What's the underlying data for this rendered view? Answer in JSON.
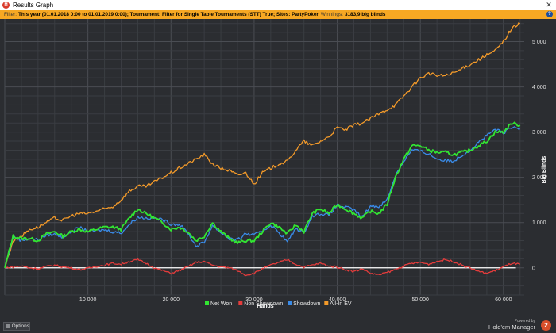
{
  "window": {
    "title": "Results Graph",
    "close_glyph": "✕",
    "app_icon": "holdem-manager-icon"
  },
  "filter": {
    "label": "Filter:",
    "description": "This year (01.01.2018 0:00 to 01.01.2019 0:00); Tournament: Filter for Single Table Tournaments (STT) True; Sites: PartyPoker",
    "winnings_label": "Winnings:",
    "winnings_value": "3183,9 big blinds",
    "help_glyph": "?"
  },
  "footer": {
    "options_label": "Options",
    "powered_by": "Powered by",
    "product_name": "Hold'em Manager",
    "badge": "2"
  },
  "chart_data": {
    "type": "line",
    "xlabel": "Hands",
    "ylabel": "Big Blinds",
    "xlim": [
      0,
      62500
    ],
    "ylim": [
      -600,
      5500
    ],
    "x_ticks": [
      10000,
      20000,
      30000,
      40000,
      50000,
      60000
    ],
    "x_tick_labels": [
      "10 000",
      "20 000",
      "30 000",
      "40 000",
      "50 000",
      "60 000"
    ],
    "y_ticks": [
      0,
      1000,
      2000,
      3000,
      4000,
      5000
    ],
    "y_tick_labels": [
      "0",
      "1 000",
      "2 000",
      "3 000",
      "4 000",
      "5 000"
    ],
    "grid": true,
    "legend_position": "bottom-center",
    "series": [
      {
        "name": "Net Won",
        "color": "#32e632",
        "x": [
          0,
          1000,
          2000,
          3000,
          4000,
          5000,
          6000,
          7000,
          8000,
          9000,
          10000,
          11000,
          12000,
          13000,
          14000,
          15000,
          16000,
          17000,
          18000,
          19000,
          20000,
          21000,
          22000,
          23000,
          24000,
          25000,
          26000,
          27000,
          28000,
          29000,
          30000,
          31000,
          32000,
          33000,
          34000,
          35000,
          36000,
          37000,
          38000,
          39000,
          40000,
          41000,
          42000,
          43000,
          44000,
          45000,
          46000,
          47000,
          48000,
          49000,
          50000,
          51000,
          52000,
          53000,
          54000,
          55000,
          56000,
          57000,
          58000,
          59000,
          60000,
          61000,
          62000
        ],
        "values": [
          0,
          700,
          650,
          650,
          600,
          750,
          800,
          700,
          800,
          850,
          800,
          850,
          900,
          900,
          850,
          1100,
          1300,
          1200,
          1100,
          1000,
          850,
          900,
          800,
          600,
          700,
          1000,
          800,
          650,
          550,
          600,
          600,
          800,
          1000,
          900,
          750,
          950,
          800,
          1200,
          1300,
          1200,
          1400,
          1300,
          1200,
          1100,
          1250,
          1200,
          1400,
          2000,
          2400,
          2700,
          2700,
          2600,
          2550,
          2550,
          2500,
          2550,
          2600,
          2700,
          2800,
          3000,
          3000,
          3200,
          3150
        ]
      },
      {
        "name": "Non Showdown",
        "color": "#e53c3c",
        "x": [
          0,
          1000,
          2000,
          3000,
          4000,
          5000,
          6000,
          7000,
          8000,
          9000,
          10000,
          11000,
          12000,
          13000,
          14000,
          15000,
          16000,
          17000,
          18000,
          19000,
          20000,
          21000,
          22000,
          23000,
          24000,
          25000,
          26000,
          27000,
          28000,
          29000,
          30000,
          31000,
          32000,
          33000,
          34000,
          35000,
          36000,
          37000,
          38000,
          39000,
          40000,
          41000,
          42000,
          43000,
          44000,
          45000,
          46000,
          47000,
          48000,
          49000,
          50000,
          51000,
          52000,
          53000,
          54000,
          55000,
          56000,
          57000,
          58000,
          59000,
          60000,
          61000,
          62000
        ],
        "values": [
          0,
          20,
          40,
          0,
          -20,
          30,
          60,
          20,
          0,
          -40,
          -10,
          30,
          60,
          100,
          80,
          140,
          180,
          100,
          0,
          -60,
          -120,
          -60,
          20,
          120,
          140,
          60,
          20,
          0,
          -60,
          -160,
          -120,
          -20,
          60,
          120,
          180,
          80,
          20,
          60,
          100,
          40,
          20,
          -40,
          -80,
          -20,
          -120,
          -160,
          -100,
          -40,
          40,
          100,
          120,
          80,
          140,
          180,
          140,
          60,
          0,
          -80,
          -120,
          -60,
          20,
          100,
          80
        ]
      },
      {
        "name": "Showdown",
        "color": "#3a8be8",
        "x": [
          0,
          1000,
          2000,
          3000,
          4000,
          5000,
          6000,
          7000,
          8000,
          9000,
          10000,
          11000,
          12000,
          13000,
          14000,
          15000,
          16000,
          17000,
          18000,
          19000,
          20000,
          21000,
          22000,
          23000,
          24000,
          25000,
          26000,
          27000,
          28000,
          29000,
          30000,
          31000,
          32000,
          33000,
          34000,
          35000,
          36000,
          37000,
          38000,
          39000,
          40000,
          41000,
          42000,
          43000,
          44000,
          45000,
          46000,
          47000,
          48000,
          49000,
          50000,
          51000,
          52000,
          53000,
          54000,
          55000,
          56000,
          57000,
          58000,
          59000,
          60000,
          61000,
          62000
        ],
        "values": [
          0,
          680,
          610,
          650,
          620,
          720,
          740,
          680,
          800,
          890,
          810,
          820,
          840,
          800,
          770,
          960,
          1120,
          1100,
          1100,
          1060,
          970,
          960,
          780,
          480,
          560,
          940,
          780,
          650,
          610,
          760,
          720,
          820,
          940,
          780,
          570,
          870,
          780,
          1140,
          1200,
          1160,
          1380,
          1340,
          1280,
          1120,
          1370,
          1360,
          1500,
          2040,
          2360,
          2600,
          2580,
          2520,
          2410,
          2370,
          2360,
          2490,
          2600,
          2780,
          2920,
          3060,
          2980,
          3100,
          3070
        ]
      },
      {
        "name": "All-In EV",
        "color": "#f39a2a",
        "x": [
          0,
          1000,
          2000,
          3000,
          4000,
          5000,
          6000,
          7000,
          8000,
          9000,
          10000,
          11000,
          12000,
          13000,
          14000,
          15000,
          16000,
          17000,
          18000,
          19000,
          20000,
          21000,
          22000,
          23000,
          24000,
          25000,
          26000,
          27000,
          28000,
          29000,
          30000,
          31000,
          32000,
          33000,
          34000,
          35000,
          36000,
          37000,
          38000,
          39000,
          40000,
          41000,
          42000,
          43000,
          44000,
          45000,
          46000,
          47000,
          48000,
          49000,
          50000,
          51000,
          52000,
          53000,
          54000,
          55000,
          56000,
          57000,
          58000,
          59000,
          60000,
          61000,
          62000
        ],
        "values": [
          0,
          600,
          700,
          850,
          900,
          1000,
          1100,
          1050,
          1150,
          1200,
          1200,
          1250,
          1300,
          1350,
          1500,
          1700,
          1800,
          1800,
          1900,
          2000,
          2100,
          2200,
          2300,
          2400,
          2500,
          2300,
          2200,
          2150,
          2050,
          2100,
          1850,
          2100,
          2200,
          2300,
          2350,
          2600,
          2800,
          2700,
          2800,
          2900,
          3100,
          3050,
          3150,
          3200,
          3300,
          3400,
          3500,
          3600,
          3800,
          4000,
          4200,
          4300,
          4250,
          4250,
          4300,
          4400,
          4500,
          4600,
          4700,
          4800,
          5000,
          5300,
          5400
        ]
      }
    ]
  }
}
